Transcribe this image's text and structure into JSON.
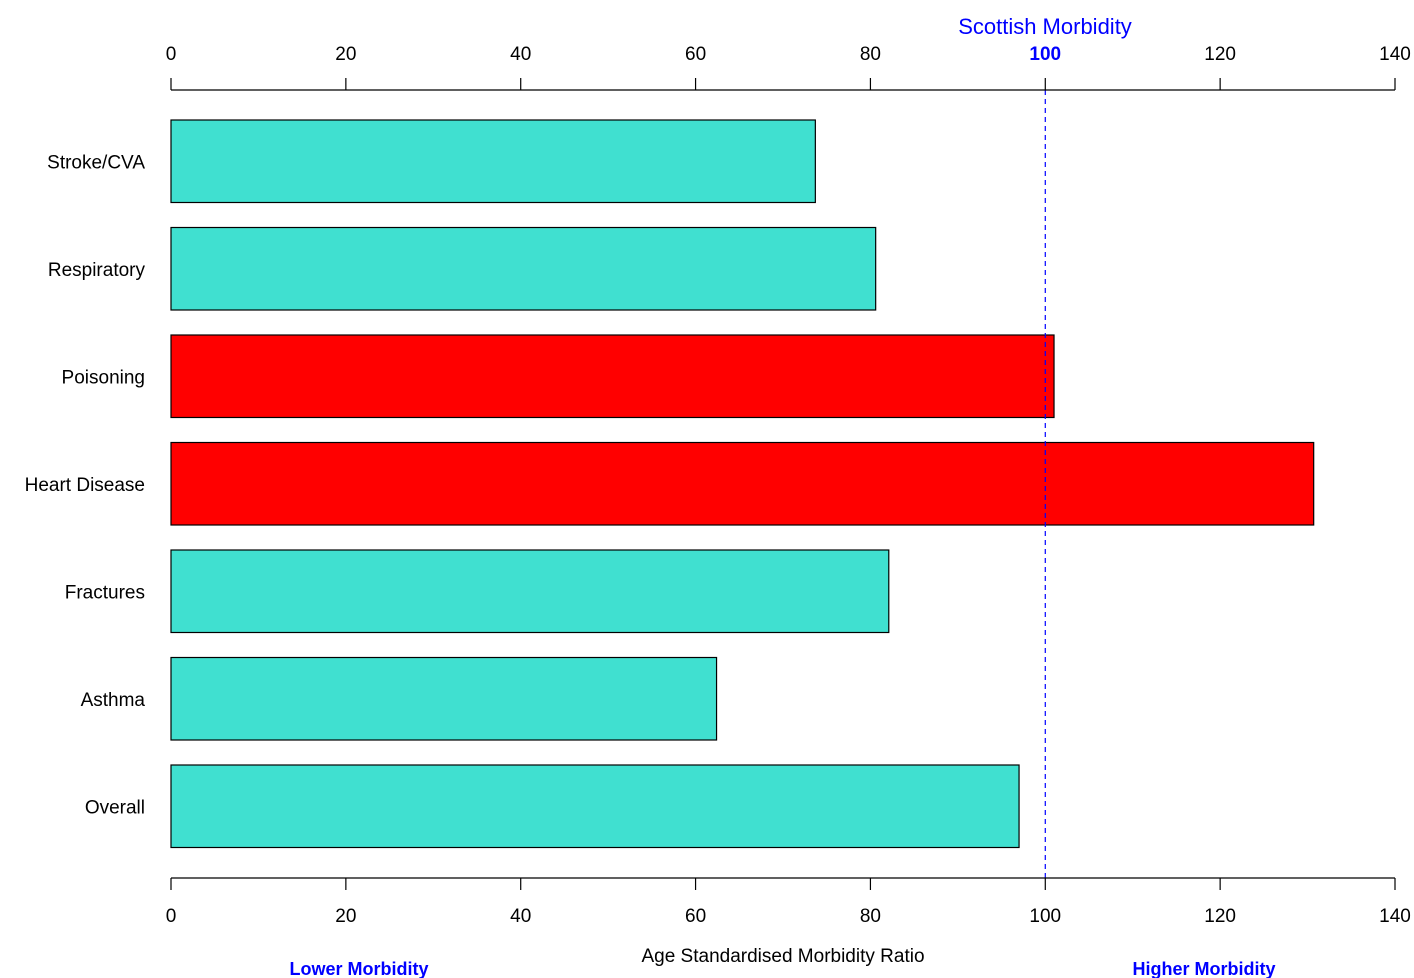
{
  "chart_data": {
    "type": "bar",
    "orientation": "horizontal",
    "categories": [
      "Stroke/CVA",
      "Respiratory",
      "Poisoning",
      "Heart Disease",
      "Fractures",
      "Asthma",
      "Overall"
    ],
    "values": [
      73.7,
      80.6,
      101.0,
      130.7,
      82.1,
      62.4,
      97.0
    ],
    "bar_colors": [
      "#40E0D0",
      "#40E0D0",
      "#FF0000",
      "#FF0000",
      "#40E0D0",
      "#40E0D0",
      "#40E0D0"
    ],
    "xlim": [
      0,
      140
    ],
    "xticks": [
      0,
      20,
      40,
      60,
      80,
      100,
      120,
      140
    ],
    "xtick_labels": [
      "0",
      "20",
      "40",
      "60",
      "80",
      "100",
      "120",
      "140"
    ],
    "top_tick_labels": [
      "0",
      "20",
      "40",
      "60",
      "80",
      "100",
      "120",
      "140"
    ],
    "top_highlight_label": "100",
    "xlabel": "Age Standardised Morbidity Ratio",
    "grid": false,
    "reference_line": {
      "value": 100,
      "label": "Scottish Morbidity",
      "color": "#0000FF"
    },
    "annotations": {
      "lower": "Lower Morbidity",
      "higher": "Higher Morbidity"
    },
    "annotation_color": "#0000FF"
  }
}
